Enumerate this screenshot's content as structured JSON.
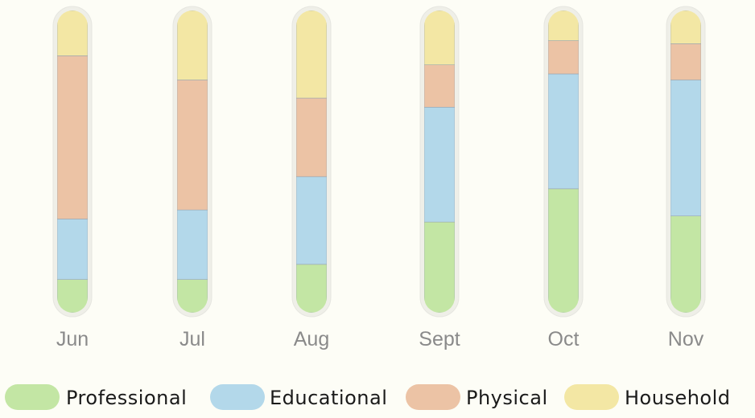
{
  "chart_data": {
    "type": "bar",
    "stacked": true,
    "normalized": true,
    "categories": [
      "Jun",
      "Jul",
      "Aug",
      "Sept",
      "Oct",
      "Nov"
    ],
    "series": [
      {
        "name": "Professional",
        "color": "#c3e6a4",
        "values": [
          11,
          11,
          16,
          30,
          41,
          32
        ]
      },
      {
        "name": "Educational",
        "color": "#b3d8ea",
        "values": [
          20,
          23,
          29,
          38,
          38,
          45
        ]
      },
      {
        "name": "Physical",
        "color": "#ecc3a5",
        "values": [
          54,
          43,
          26,
          14,
          11,
          12
        ]
      },
      {
        "name": "Household",
        "color": "#f3e7a4",
        "values": [
          15,
          23,
          29,
          18,
          10,
          11
        ]
      }
    ],
    "ylim": [
      0,
      100
    ],
    "legend_position": "bottom",
    "grid": false
  }
}
